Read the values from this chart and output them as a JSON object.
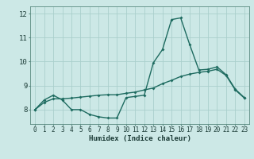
{
  "xlabel": "Humidex (Indice chaleur)",
  "ylabel": "",
  "background_color": "#cce8e6",
  "line_color": "#1e6b60",
  "grid_color": "#aacfcc",
  "x_line1": [
    0,
    1,
    2,
    3,
    4,
    5,
    6,
    7,
    8,
    9,
    10,
    11,
    12,
    13,
    14,
    15,
    16,
    17,
    18,
    19,
    20,
    21,
    22,
    23
  ],
  "y_line1": [
    8.0,
    8.4,
    8.6,
    8.4,
    8.0,
    8.0,
    7.8,
    7.7,
    7.65,
    7.65,
    8.5,
    8.55,
    8.6,
    9.95,
    10.5,
    11.75,
    11.82,
    10.7,
    9.65,
    9.68,
    9.78,
    9.45,
    8.85,
    8.5
  ],
  "x_line2": [
    0,
    1,
    2,
    3,
    4,
    5,
    6,
    7,
    8,
    9,
    10,
    11,
    12,
    13,
    14,
    15,
    16,
    17,
    18,
    19,
    20,
    21,
    22,
    23
  ],
  "y_line2": [
    8.0,
    8.3,
    8.45,
    8.45,
    8.48,
    8.52,
    8.56,
    8.6,
    8.62,
    8.62,
    8.68,
    8.73,
    8.82,
    8.9,
    9.08,
    9.22,
    9.38,
    9.48,
    9.55,
    9.6,
    9.68,
    9.42,
    8.82,
    8.48
  ],
  "xlim": [
    -0.5,
    23.5
  ],
  "ylim": [
    7.4,
    12.3
  ],
  "yticks": [
    8,
    9,
    10,
    11,
    12
  ],
  "xticks": [
    0,
    1,
    2,
    3,
    4,
    5,
    6,
    7,
    8,
    9,
    10,
    11,
    12,
    13,
    14,
    15,
    16,
    17,
    18,
    19,
    20,
    21,
    22,
    23
  ],
  "marker": "D",
  "markersize": 2.0,
  "linewidth": 1.0,
  "tick_fontsize": 5.5,
  "xlabel_fontsize": 6.5
}
